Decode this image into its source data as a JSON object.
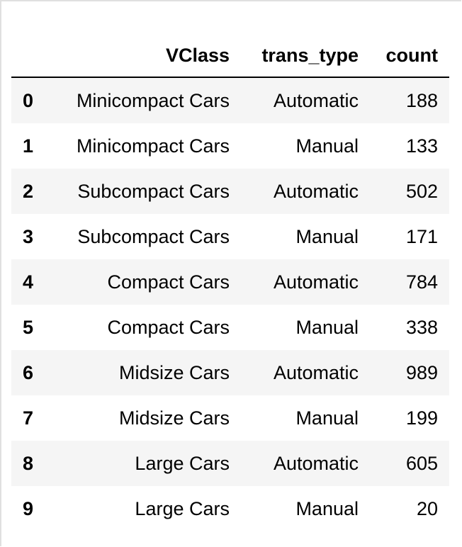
{
  "table": {
    "headers": [
      "",
      "VClass",
      "trans_type",
      "count"
    ],
    "rows": [
      {
        "index": "0",
        "vclass": "Minicompact Cars",
        "trans_type": "Automatic",
        "count": "188"
      },
      {
        "index": "1",
        "vclass": "Minicompact Cars",
        "trans_type": "Manual",
        "count": "133"
      },
      {
        "index": "2",
        "vclass": "Subcompact Cars",
        "trans_type": "Automatic",
        "count": "502"
      },
      {
        "index": "3",
        "vclass": "Subcompact Cars",
        "trans_type": "Manual",
        "count": "171"
      },
      {
        "index": "4",
        "vclass": "Compact Cars",
        "trans_type": "Automatic",
        "count": "784"
      },
      {
        "index": "5",
        "vclass": "Compact Cars",
        "trans_type": "Manual",
        "count": "338"
      },
      {
        "index": "6",
        "vclass": "Midsize Cars",
        "trans_type": "Automatic",
        "count": "989"
      },
      {
        "index": "7",
        "vclass": "Midsize Cars",
        "trans_type": "Manual",
        "count": "199"
      },
      {
        "index": "8",
        "vclass": "Large Cars",
        "trans_type": "Automatic",
        "count": "605"
      },
      {
        "index": "9",
        "vclass": "Large Cars",
        "trans_type": "Manual",
        "count": "20"
      }
    ]
  },
  "colors": {
    "stripe": "#f5f5f5",
    "background": "#ffffff",
    "header_rule": "#000000",
    "frame_border": "#e0e0e0"
  }
}
